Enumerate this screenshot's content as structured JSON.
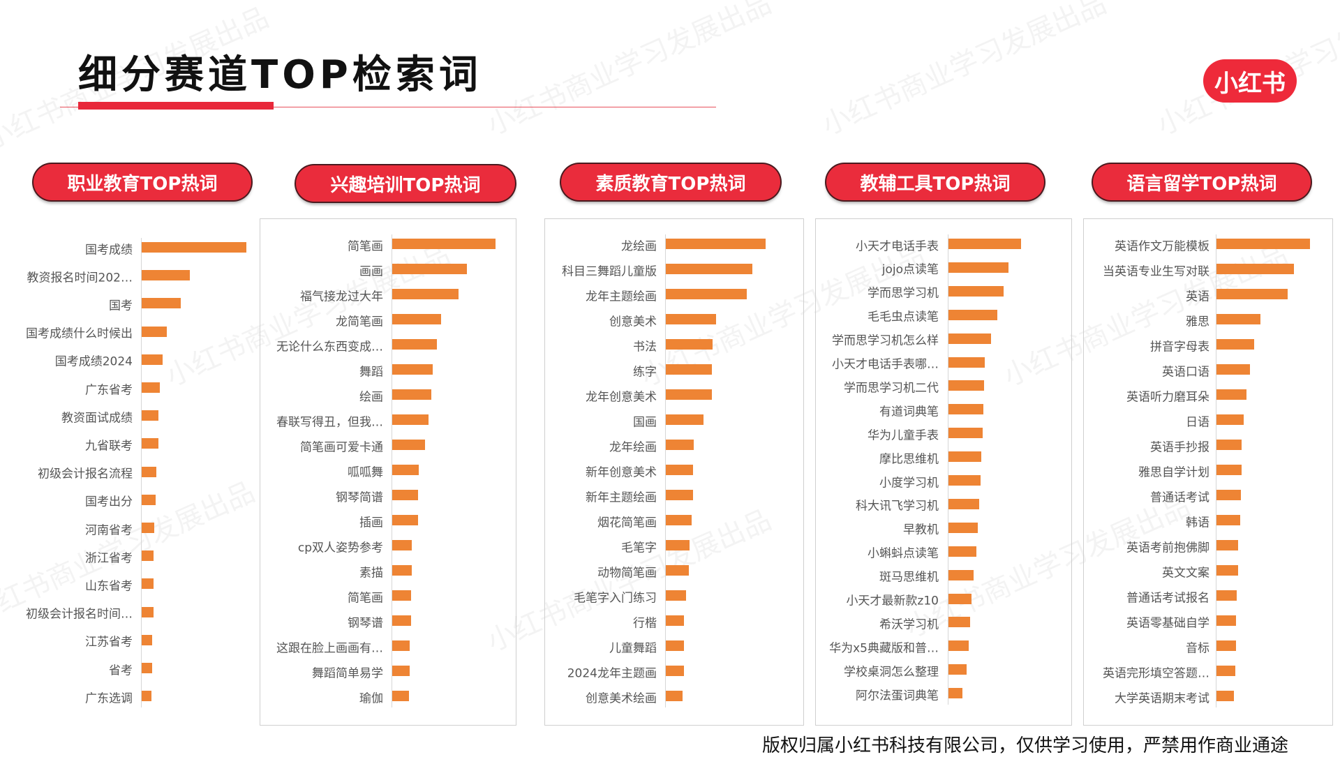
{
  "title": "细分赛道TOP检索词",
  "logo": "小红书",
  "watermark": "小红书商业学习发展出品",
  "footer": "版权归属小红书科技有限公司，仅供学习使用，严禁用作商业通途",
  "colors": {
    "accent": "#ea2c3c",
    "bar": "#ee8434"
  },
  "chart_data": [
    {
      "type": "bar",
      "orientation": "horizontal",
      "title": "职业教育TOP热词",
      "categories": [
        "国考成绩",
        "教资报名时间202…",
        "国考",
        "国考成绩什么时候出",
        "国考成绩2024",
        "广东省考",
        "教资面试成绩",
        "九省联考",
        "初级会计报名流程",
        "国考出分",
        "河南省考",
        "浙江省考",
        "山东省考",
        "初级会计报名时间…",
        "江苏省考",
        "省考",
        "广东选调"
      ],
      "values": [
        100,
        46,
        37,
        24,
        20,
        17,
        16,
        16,
        14,
        13,
        12,
        11,
        11,
        11,
        10,
        10,
        9
      ]
    },
    {
      "type": "bar",
      "orientation": "horizontal",
      "title": "兴趣培训TOP热词",
      "categories": [
        "简笔画",
        "画画",
        "福气接龙过大年",
        "龙简笔画",
        "无论什么东西变成…",
        "舞蹈",
        "绘画",
        "春联写得丑，但我…",
        "简笔画可爱卡通",
        "呱呱舞",
        "钢琴简谱",
        "插画",
        "cp双人姿势参考",
        "素描",
        "简笔画",
        "钢琴谱",
        "这跟在脸上画画有…",
        "舞蹈简单易学",
        "瑜伽"
      ],
      "values": [
        100,
        72,
        64,
        47,
        43,
        39,
        38,
        35,
        32,
        26,
        25,
        25,
        19,
        19,
        18,
        18,
        17,
        17,
        16
      ]
    },
    {
      "type": "bar",
      "orientation": "horizontal",
      "title": "素质教育TOP热词",
      "categories": [
        "龙绘画",
        "科目三舞蹈儿童版",
        "龙年主题绘画",
        "创意美术",
        "书法",
        "练字",
        "龙年创意美术",
        "国画",
        "龙年绘画",
        "新年创意美术",
        "新年主题绘画",
        "烟花简笔画",
        "毛笔字",
        "动物简笔画",
        "毛笔字入门练习",
        "行楷",
        "儿童舞蹈",
        "2024龙年主题画",
        "创意美术绘画"
      ],
      "values": [
        100,
        87,
        81,
        50,
        47,
        46,
        46,
        38,
        28,
        27,
        27,
        26,
        24,
        23,
        20,
        18,
        18,
        18,
        17
      ]
    },
    {
      "type": "bar",
      "orientation": "horizontal",
      "title": "教辅工具TOP热词",
      "categories": [
        "小天才电话手表",
        "jojo点读笔",
        "学而思学习机",
        "毛毛虫点读笔",
        "学而思学习机怎么样",
        "小天才电话手表哪…",
        "学而思学习机二代",
        "有道词典笔",
        "华为儿童手表",
        "摩比思维机",
        "小度学习机",
        "科大讯飞学习机",
        "早教机",
        "小蝌蚪点读笔",
        "斑马思维机",
        "小天才最新款z10",
        "希沃学习机",
        "华为x5典藏版和普…",
        "学校桌洞怎么整理",
        "阿尔法蛋词典笔"
      ],
      "values": [
        100,
        83,
        76,
        67,
        59,
        50,
        49,
        48,
        47,
        45,
        44,
        42,
        40,
        38,
        35,
        32,
        30,
        28,
        25,
        19
      ]
    },
    {
      "type": "bar",
      "orientation": "horizontal",
      "title": "语言留学TOP热词",
      "categories": [
        "英语作文万能模板",
        "当英语专业生写对联",
        "英语",
        "雅思",
        "拼音字母表",
        "英语口语",
        "英语听力磨耳朵",
        "日语",
        "英语手抄报",
        "雅思自学计划",
        "普通话考试",
        "韩语",
        "英语考前抱佛脚",
        "英文文案",
        "普通话考试报名",
        "英语零基础自学",
        "音标",
        "英语完形填空答题…",
        "大学英语期末考试"
      ],
      "values": [
        100,
        83,
        76,
        47,
        40,
        36,
        32,
        29,
        27,
        27,
        26,
        25,
        23,
        23,
        22,
        21,
        21,
        20,
        19
      ]
    }
  ]
}
